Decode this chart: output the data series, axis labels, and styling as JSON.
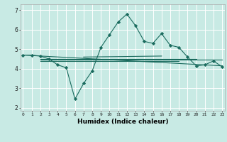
{
  "title": "",
  "xlabel": "Humidex (Indice chaleur)",
  "bg_color": "#c8eae4",
  "grid_color": "#ffffff",
  "line_color": "#1a6b5e",
  "x_ticks": [
    0,
    1,
    2,
    3,
    4,
    5,
    6,
    7,
    8,
    9,
    10,
    11,
    12,
    13,
    14,
    15,
    16,
    17,
    18,
    19,
    20,
    21,
    22,
    23
  ],
  "y_ticks": [
    2,
    3,
    4,
    5,
    6,
    7
  ],
  "ylim": [
    1.85,
    7.3
  ],
  "xlim": [
    -0.3,
    23.3
  ],
  "curve1_x": [
    0,
    1,
    2,
    3,
    4,
    5,
    6,
    7,
    8,
    9,
    10,
    11,
    12,
    13,
    14,
    15,
    16,
    17,
    18,
    19,
    20,
    21,
    22,
    23
  ],
  "curve1_y": [
    4.7,
    4.7,
    4.65,
    4.5,
    4.2,
    4.05,
    2.45,
    3.25,
    3.9,
    5.1,
    5.75,
    6.4,
    6.8,
    6.2,
    5.4,
    5.3,
    5.8,
    5.2,
    5.1,
    4.6,
    4.15,
    4.2,
    4.4,
    4.1
  ],
  "line1_x": [
    0,
    23
  ],
  "line1_y": [
    4.7,
    4.15
  ],
  "line2_x": [
    2,
    20
  ],
  "line2_y": [
    4.5,
    4.5
  ],
  "line3_x": [
    2,
    23
  ],
  "line3_y": [
    4.45,
    4.45
  ],
  "line4_x": [
    2,
    18
  ],
  "line4_y": [
    4.4,
    4.4
  ],
  "line5_x": [
    7,
    16
  ],
  "line5_y": [
    4.6,
    4.65
  ]
}
